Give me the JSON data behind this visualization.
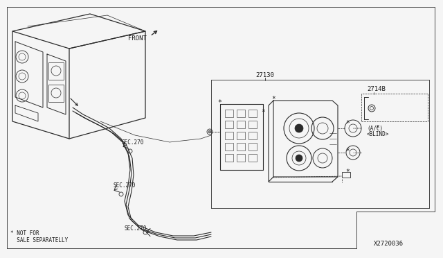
{
  "bg_color": "#f5f5f5",
  "line_color": "#2a2a2a",
  "text_color": "#1a1a1a",
  "diagram_id": "X2720036",
  "part_27130": "27130",
  "part_2714B": "2714B",
  "label_front": "FRONT",
  "label_sec270_1": "SEC.270",
  "label_sec270_2": "SEC.270",
  "label_sec270_3": "SEC.270",
  "label_not_for_sale": "* NOT FOR\n  SALE SEPARATELLY",
  "label_ac": "(A/C)",
  "label_blind": "<BLIND>",
  "figsize": [
    6.4,
    3.72
  ],
  "dpi": 100
}
